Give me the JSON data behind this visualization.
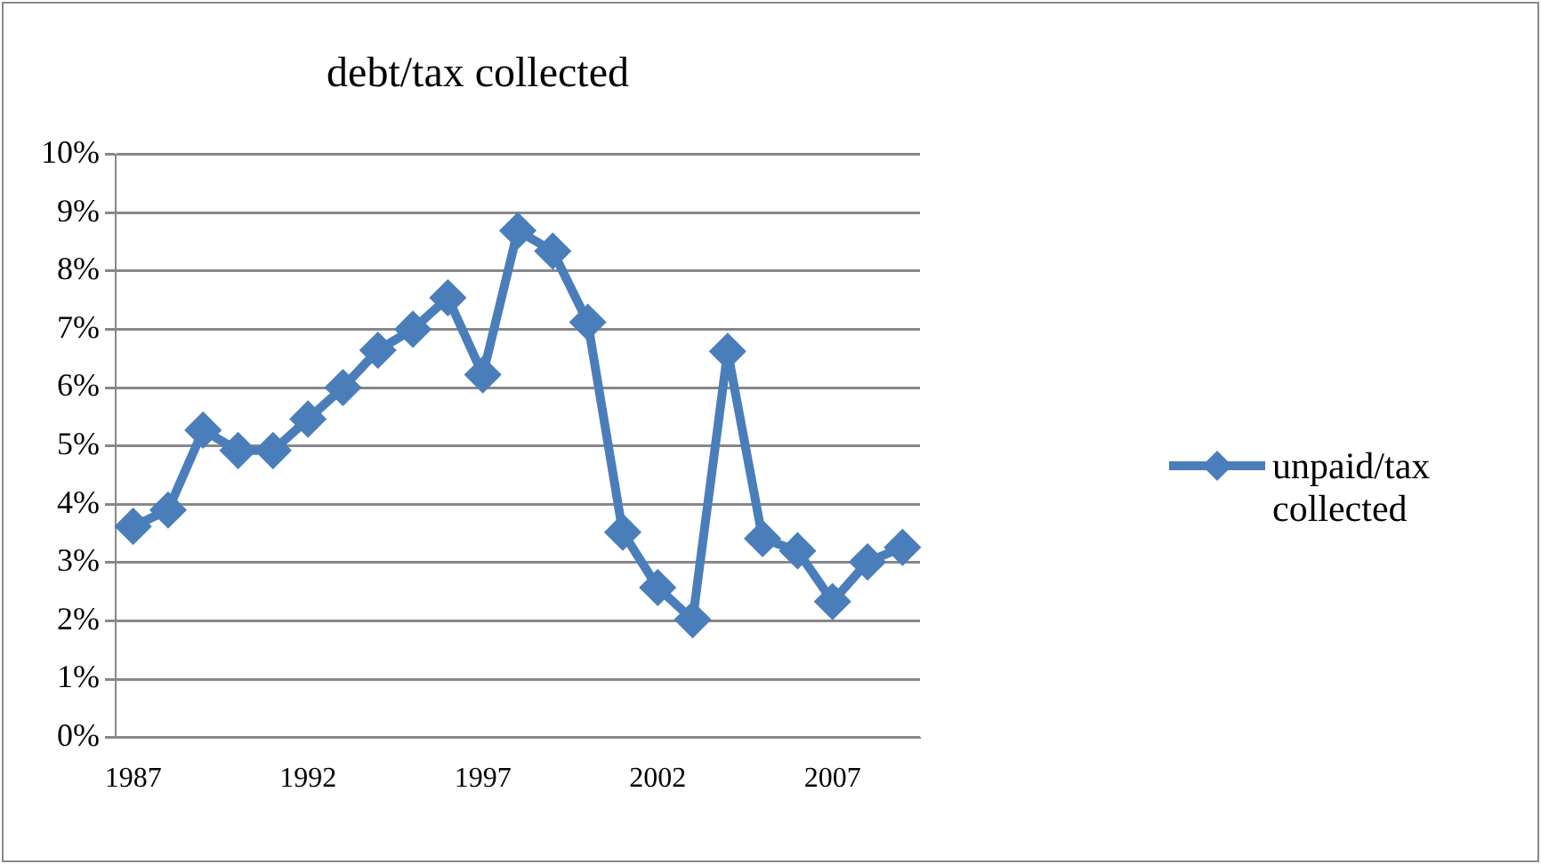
{
  "chart_data": {
    "type": "line",
    "title": "debt/tax collected",
    "categories": [
      "1987",
      null,
      null,
      null,
      null,
      "1992",
      null,
      null,
      null,
      null,
      "1997",
      null,
      null,
      null,
      null,
      "2002",
      null,
      null,
      null,
      null,
      "2007",
      null,
      null
    ],
    "series": [
      {
        "name": "unpaid/tax collected",
        "color": "#4a7ebb",
        "values": [
          3.62,
          3.9,
          5.27,
          4.92,
          4.92,
          5.46,
          6.0,
          6.64,
          7.0,
          7.54,
          6.22,
          8.69,
          8.34,
          7.12,
          3.52,
          2.57,
          2.02,
          6.62,
          3.41,
          3.2,
          2.33,
          3.01,
          3.26
        ]
      }
    ],
    "ylim": [
      0,
      10
    ],
    "yticks": [
      {
        "value": 0,
        "label": "0%"
      },
      {
        "value": 1,
        "label": "1%"
      },
      {
        "value": 2,
        "label": "2%"
      },
      {
        "value": 3,
        "label": "3%"
      },
      {
        "value": 4,
        "label": "4%"
      },
      {
        "value": 5,
        "label": "5%"
      },
      {
        "value": 6,
        "label": "6%"
      },
      {
        "value": 7,
        "label": "7%"
      },
      {
        "value": 8,
        "label": "8%"
      },
      {
        "value": 9,
        "label": "9%"
      },
      {
        "value": 10,
        "label": "10%"
      }
    ],
    "grid": "y",
    "legend": "right",
    "marker": "diamond",
    "line_style": "solid"
  }
}
